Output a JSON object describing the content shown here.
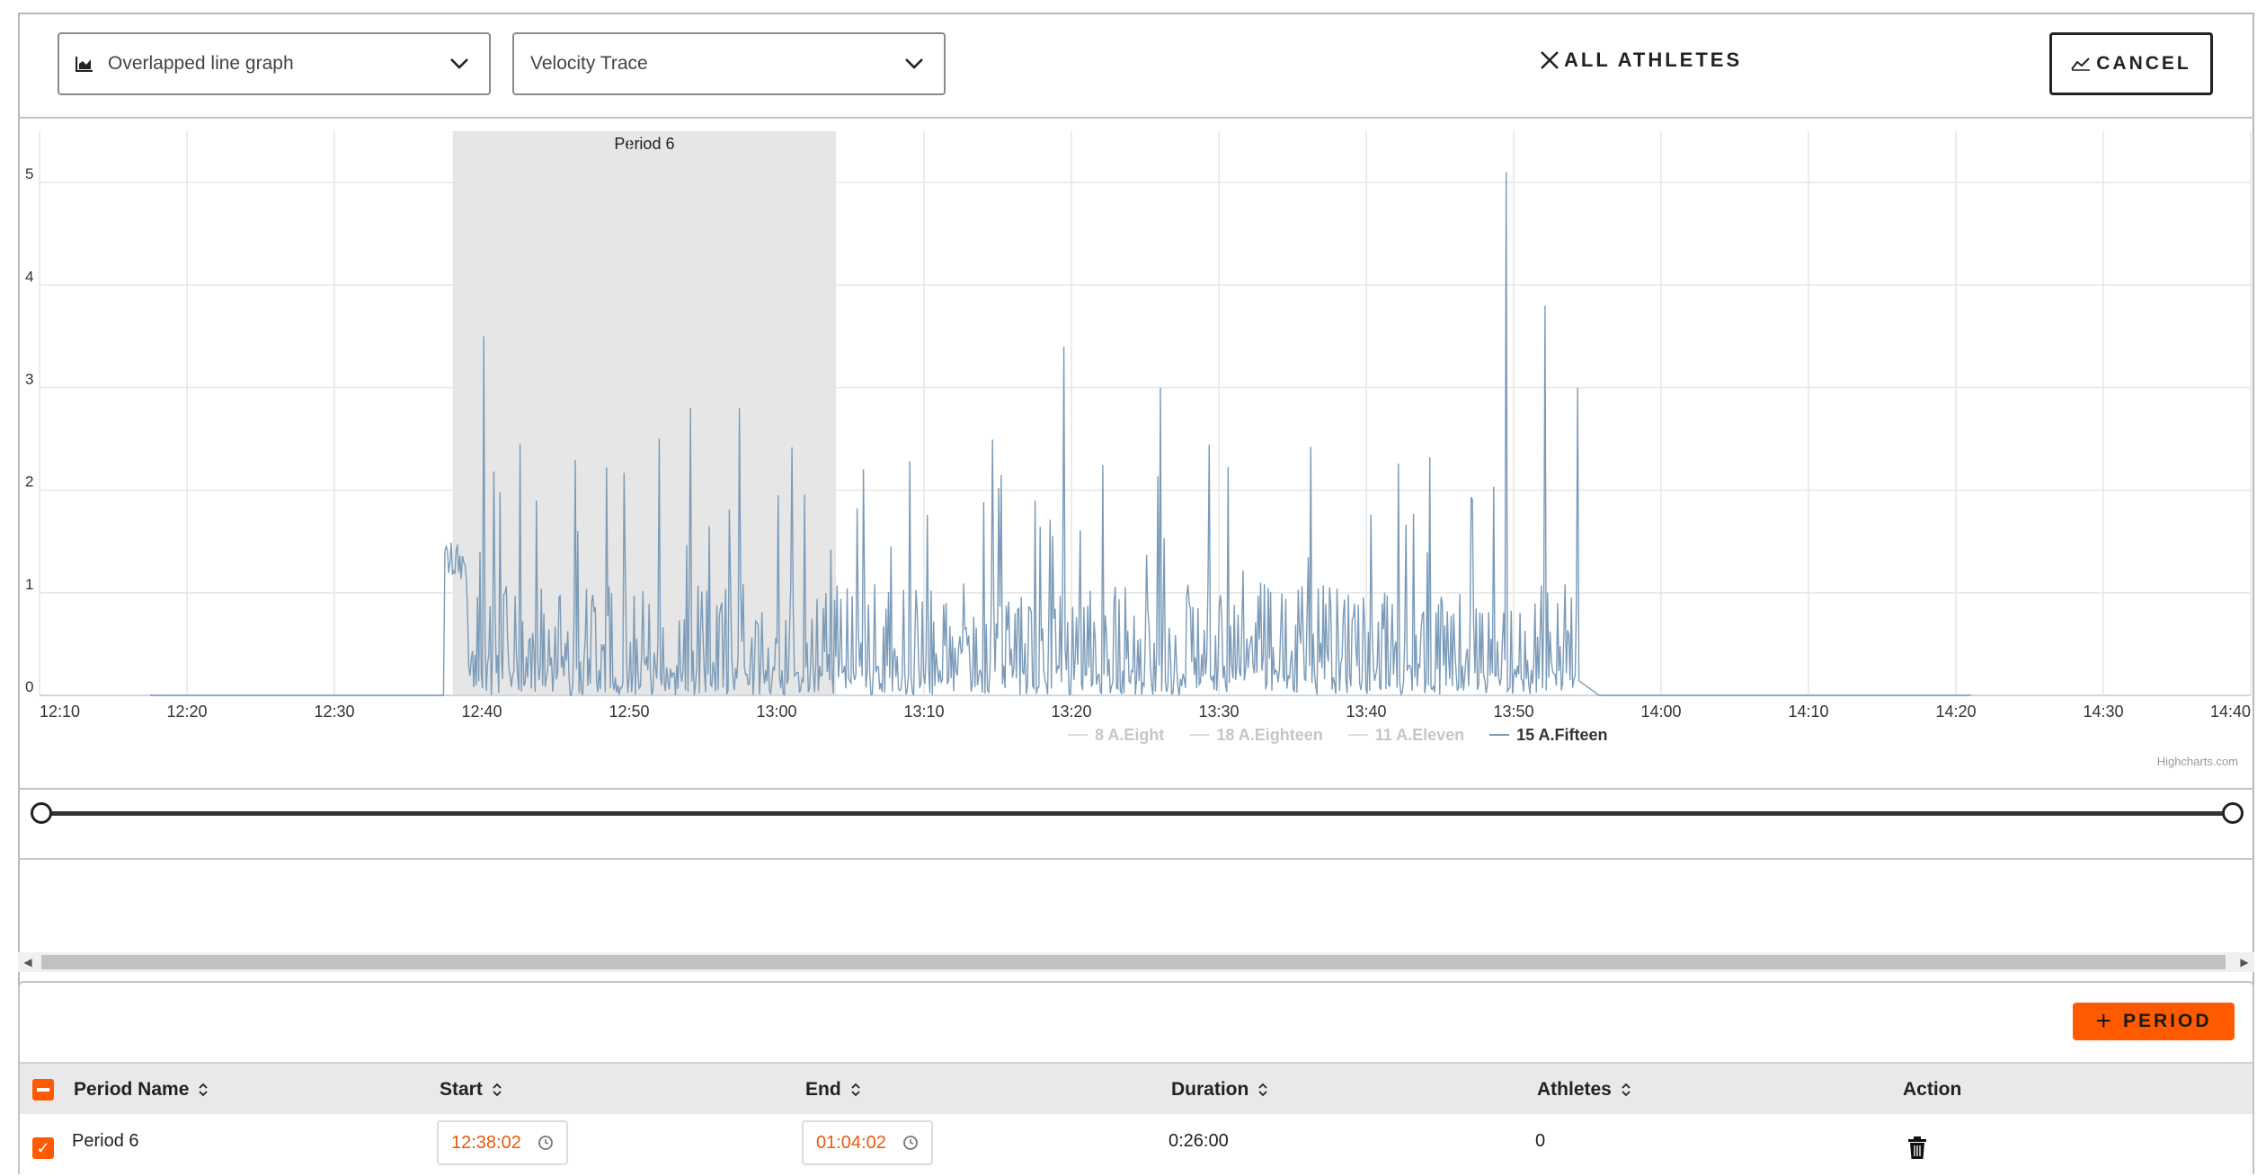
{
  "toolbar": {
    "graph_type": "Overlapped line graph",
    "metric": "Velocity Trace",
    "all_athletes_label": "ALL ATHLETES",
    "cancel_label": "CANCEL"
  },
  "chart_data": {
    "type": "line",
    "x_ticks": [
      "12:10",
      "12:20",
      "12:30",
      "12:40",
      "12:50",
      "13:00",
      "13:10",
      "13:20",
      "13:30",
      "13:40",
      "13:50",
      "14:00",
      "14:10",
      "14:20",
      "14:30",
      "14:40"
    ],
    "y_ticks": [
      0,
      1,
      2,
      3,
      4,
      5
    ],
    "xlim": [
      "12:10",
      "14:40"
    ],
    "ylim": [
      0,
      5.5
    ],
    "grid": true,
    "plot_band": {
      "label": "Period 6",
      "from": "12:38:02",
      "to": "13:04:02"
    },
    "series": [
      {
        "name": "8 A.Eight",
        "visible": false
      },
      {
        "name": "18 A.Eighteen",
        "visible": false
      },
      {
        "name": "11 A.Eleven",
        "visible": false
      },
      {
        "name": "15 A.Fifteen",
        "visible": true,
        "color": "#7b9bb8",
        "peaks": [
          [
            "12:37:30",
            1.4
          ],
          [
            "12:40:10",
            3.5
          ],
          [
            "12:52:00",
            2.5
          ],
          [
            "12:54:10",
            2.8
          ],
          [
            "12:57:30",
            2.8
          ],
          [
            "13:19:30",
            3.4
          ],
          [
            "13:26:00",
            3.0
          ],
          [
            "13:49:30",
            5.1
          ],
          [
            "13:52:10",
            3.8
          ],
          [
            "13:54:20",
            3.0
          ],
          [
            "13:57:00",
            0.0
          ]
        ],
        "active_range": [
          "12:37:30",
          "13:57:00"
        ]
      }
    ],
    "legend_placement": "bottom-center",
    "credits": "Highcharts.com"
  },
  "colors": {
    "accent": "#ff5a00",
    "series": "#7b9bb8",
    "band": "#e6e6e6"
  },
  "periods": {
    "add_label": "PERIOD",
    "columns": [
      "Period Name",
      "Start",
      "End",
      "Duration",
      "Athletes",
      "Action"
    ],
    "rows": [
      {
        "name": "Period 6",
        "start": "12:38:02",
        "end": "01:04:02",
        "duration": "0:26:00",
        "athletes": "0"
      }
    ]
  }
}
